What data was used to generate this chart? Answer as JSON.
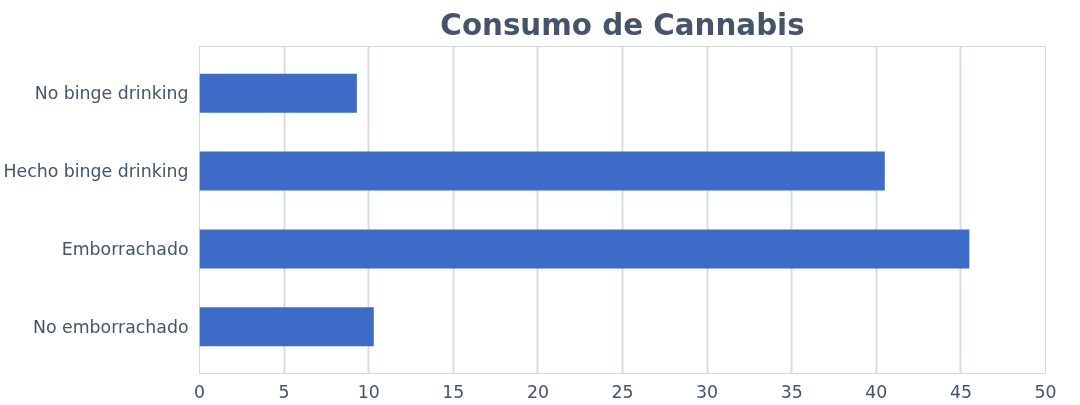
{
  "chart_data": {
    "type": "bar",
    "orientation": "horizontal",
    "title": "Consumo de Cannabis",
    "categories": [
      "No binge drinking",
      "Hecho binge drinking",
      "Emborrachado",
      "No emborrachado"
    ],
    "values": [
      9.3,
      40.5,
      45.5,
      10.3
    ],
    "color": "#3d6cc8",
    "xlim": [
      0,
      50
    ],
    "xticks": [
      0,
      5,
      10,
      15,
      20,
      25,
      30,
      35,
      40,
      45,
      50
    ],
    "grid": "x"
  }
}
